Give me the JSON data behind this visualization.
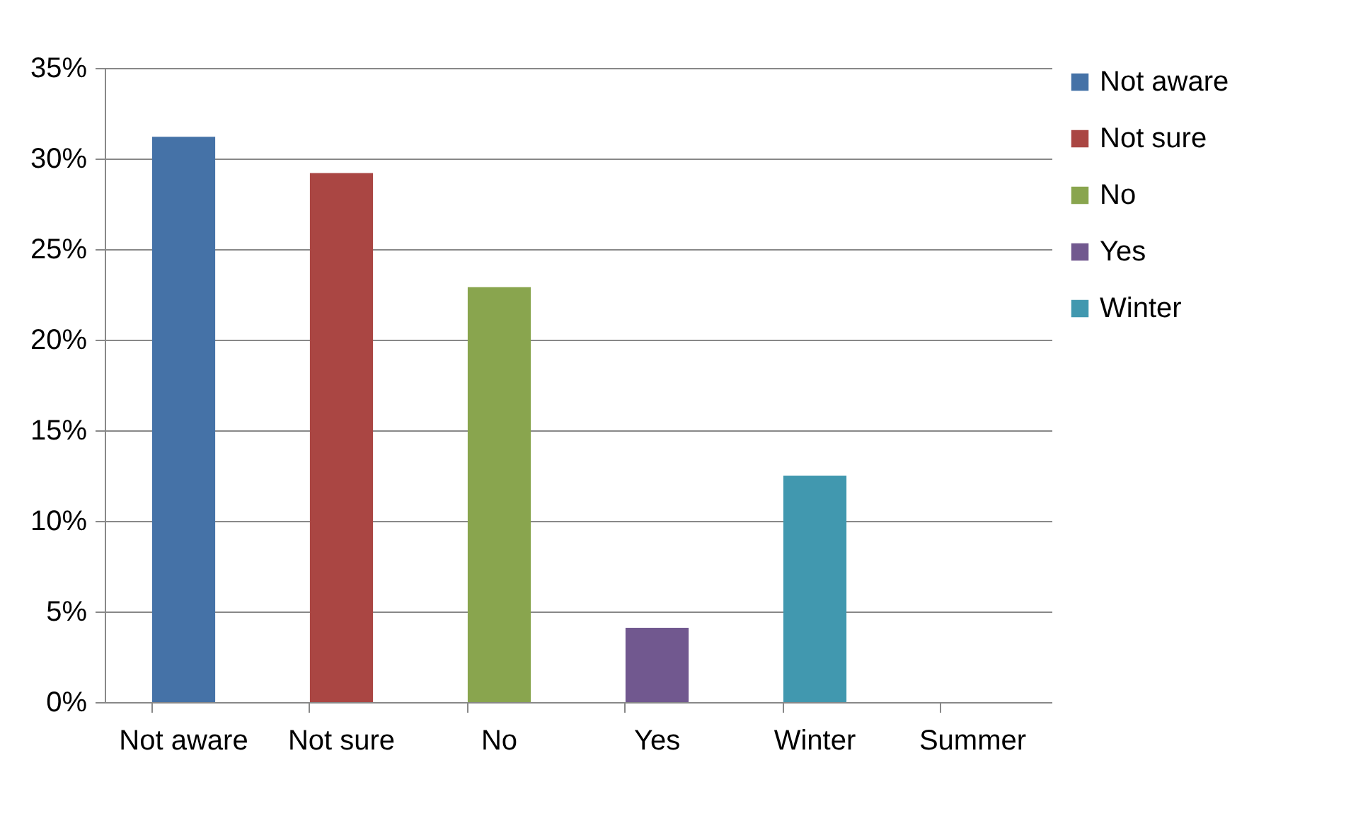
{
  "chart_data": {
    "type": "bar",
    "categories": [
      "Not aware",
      "Not sure",
      "No",
      "Yes",
      "Winter",
      "Summer"
    ],
    "series": [
      {
        "name": "Not aware",
        "color": "#4572a7",
        "values": [
          31.2,
          null,
          null,
          null,
          null,
          null
        ]
      },
      {
        "name": "Not sure",
        "color": "#aa4643",
        "values": [
          null,
          29.2,
          null,
          null,
          null,
          null
        ]
      },
      {
        "name": "No",
        "color": "#89a54e",
        "values": [
          null,
          null,
          22.9,
          null,
          null,
          null
        ]
      },
      {
        "name": "Yes",
        "color": "#71588f",
        "values": [
          null,
          null,
          null,
          4.1,
          null,
          null
        ]
      },
      {
        "name": "Winter",
        "color": "#4198af",
        "values": [
          null,
          null,
          null,
          null,
          12.5,
          null
        ]
      }
    ],
    "ylim": [
      0,
      35
    ],
    "yticks": [
      {
        "value": 0,
        "label": "0%"
      },
      {
        "value": 5,
        "label": "5%"
      },
      {
        "value": 10,
        "label": "10%"
      },
      {
        "value": 15,
        "label": "15%"
      },
      {
        "value": 20,
        "label": "20%"
      },
      {
        "value": 25,
        "label": "25%"
      },
      {
        "value": 30,
        "label": "30%"
      },
      {
        "value": 35,
        "label": "35%"
      }
    ],
    "grid": "y",
    "legend": "right"
  }
}
